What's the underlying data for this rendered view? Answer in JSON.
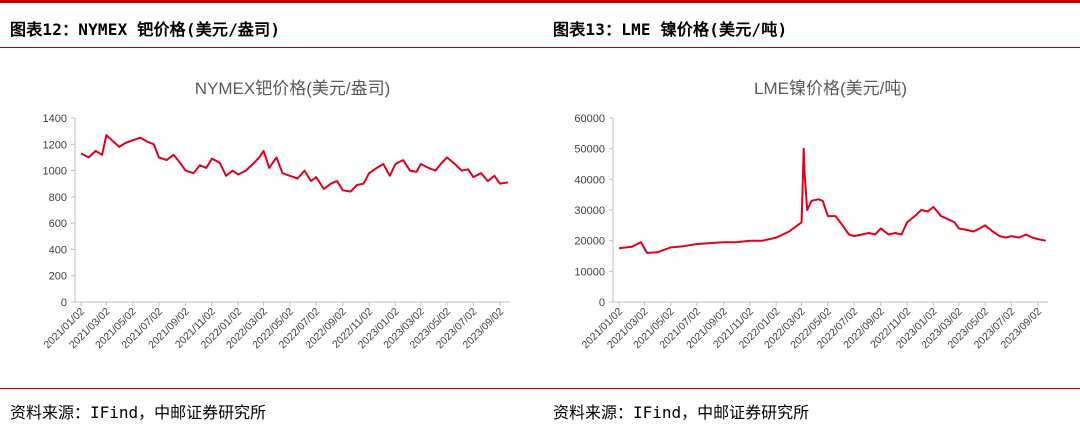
{
  "headers": {
    "left": "图表12：NYMEX 钯价格(美元/盎司)",
    "right": "图表13：LME 镍价格(美元/吨)"
  },
  "sources": {
    "left": "资料来源：IFind，中邮证券研究所",
    "right": "资料来源：IFind，中邮证券研究所"
  },
  "colors": {
    "line": "#e0001e",
    "accent": "#c00000",
    "axis": "#bfbfbf"
  },
  "chart_data": [
    {
      "type": "line",
      "title": "NYMEX钯价格(美元/盎司)",
      "xlabel": "",
      "ylabel": "",
      "ylim": [
        0,
        1400
      ],
      "yticks": [
        0,
        200,
        400,
        600,
        800,
        1000,
        1200,
        1400
      ],
      "xtick_labels": [
        "2021/01/02",
        "2021/03/02",
        "2021/05/02",
        "2021/07/02",
        "2021/09/02",
        "2021/11/02",
        "2022/01/02",
        "2022/03/02",
        "2022/05/02",
        "2022/07/02",
        "2022/09/02",
        "2022/11/02",
        "2023/01/02",
        "2023/03/02",
        "2023/05/02",
        "2023/07/02",
        "2023/09/02"
      ],
      "grid": false,
      "legend": "none",
      "series": [
        {
          "x": [
            "2021/01/02",
            "2021/01/20",
            "2021/02/05",
            "2021/02/20",
            "2021/03/02",
            "2021/03/15",
            "2021/04/01",
            "2021/04/15",
            "2021/05/02",
            "2021/05/20",
            "2021/06/05",
            "2021/06/20",
            "2021/07/02",
            "2021/07/20",
            "2021/08/05",
            "2021/08/20",
            "2021/09/02",
            "2021/09/20",
            "2021/10/05",
            "2021/10/20",
            "2021/11/02",
            "2021/11/20",
            "2021/12/05",
            "2021/12/20",
            "2022/01/02",
            "2022/01/20",
            "2022/02/05",
            "2022/02/20",
            "2022/03/02",
            "2022/03/15",
            "2022/04/01",
            "2022/04/15",
            "2022/05/02",
            "2022/05/20",
            "2022/06/05",
            "2022/06/20",
            "2022/07/02",
            "2022/07/20",
            "2022/08/05",
            "2022/08/20",
            "2022/09/02",
            "2022/09/20",
            "2022/10/05",
            "2022/10/20",
            "2022/11/02",
            "2022/11/20",
            "2022/12/05",
            "2022/12/20",
            "2023/01/02",
            "2023/01/20",
            "2023/02/05",
            "2023/02/20",
            "2023/03/02",
            "2023/03/20",
            "2023/04/05",
            "2023/04/20",
            "2023/05/02",
            "2023/05/20",
            "2023/06/05",
            "2023/06/20",
            "2023/07/02",
            "2023/07/20",
            "2023/08/05",
            "2023/08/20",
            "2023/09/02",
            "2023/09/20"
          ],
          "y": [
            1130,
            1100,
            1150,
            1120,
            1270,
            1230,
            1180,
            1210,
            1230,
            1250,
            1220,
            1200,
            1100,
            1080,
            1120,
            1060,
            1000,
            980,
            1040,
            1020,
            1090,
            1060,
            960,
            1000,
            970,
            1000,
            1050,
            1100,
            1150,
            1020,
            1100,
            980,
            960,
            940,
            1000,
            920,
            950,
            860,
            900,
            920,
            850,
            840,
            890,
            900,
            980,
            1020,
            1050,
            960,
            1050,
            1080,
            1000,
            990,
            1050,
            1020,
            1000,
            1060,
            1100,
            1050,
            1000,
            1010,
            950,
            980,
            920,
            960,
            900,
            910
          ]
        }
      ]
    },
    {
      "type": "line",
      "title": "LME镍价格(美元/吨)",
      "xlabel": "",
      "ylabel": "",
      "ylim": [
        0,
        60000
      ],
      "yticks": [
        0,
        10000,
        20000,
        30000,
        40000,
        50000,
        60000
      ],
      "xtick_labels": [
        "2021/01/02",
        "2021/03/02",
        "2021/05/02",
        "2021/07/02",
        "2021/09/02",
        "2021/11/02",
        "2022/01/02",
        "2022/03/02",
        "2022/05/02",
        "2022/07/02",
        "2022/09/02",
        "2022/11/02",
        "2023/01/02",
        "2023/03/02",
        "2023/05/02",
        "2023/07/02",
        "2023/09/02"
      ],
      "grid": false,
      "legend": "none",
      "series": [
        {
          "x": [
            "2021/01/02",
            "2021/02/01",
            "2021/02/22",
            "2021/03/08",
            "2021/04/01",
            "2021/05/02",
            "2021/06/01",
            "2021/07/02",
            "2021/08/01",
            "2021/09/02",
            "2021/10/01",
            "2021/11/02",
            "2021/12/01",
            "2022/01/02",
            "2022/02/01",
            "2022/03/02",
            "2022/03/07",
            "2022/03/09",
            "2022/03/15",
            "2022/03/25",
            "2022/04/10",
            "2022/04/20",
            "2022/05/02",
            "2022/05/20",
            "2022/06/05",
            "2022/06/20",
            "2022/07/02",
            "2022/07/20",
            "2022/08/05",
            "2022/08/20",
            "2022/09/02",
            "2022/09/20",
            "2022/10/05",
            "2022/10/20",
            "2022/11/02",
            "2022/11/20",
            "2022/12/05",
            "2022/12/20",
            "2023/01/02",
            "2023/01/20",
            "2023/02/05",
            "2023/02/20",
            "2023/03/02",
            "2023/03/20",
            "2023/04/05",
            "2023/04/20",
            "2023/05/02",
            "2023/05/20",
            "2023/06/05",
            "2023/06/20",
            "2023/07/02",
            "2023/07/20",
            "2023/08/05",
            "2023/08/20",
            "2023/09/02",
            "2023/09/20"
          ],
          "y": [
            17500,
            18000,
            19500,
            16000,
            16200,
            17800,
            18200,
            18900,
            19200,
            19500,
            19500,
            20000,
            20000,
            21000,
            23000,
            26000,
            50000,
            42000,
            30000,
            33000,
            33500,
            33000,
            28000,
            28000,
            25000,
            22000,
            21500,
            22000,
            22500,
            22000,
            24000,
            22000,
            22500,
            22000,
            26000,
            28000,
            30000,
            29500,
            31000,
            28000,
            27000,
            26000,
            24000,
            23500,
            23000,
            24000,
            25000,
            23000,
            21500,
            21000,
            21500,
            21000,
            22000,
            21000,
            20500,
            20000
          ]
        }
      ]
    }
  ]
}
